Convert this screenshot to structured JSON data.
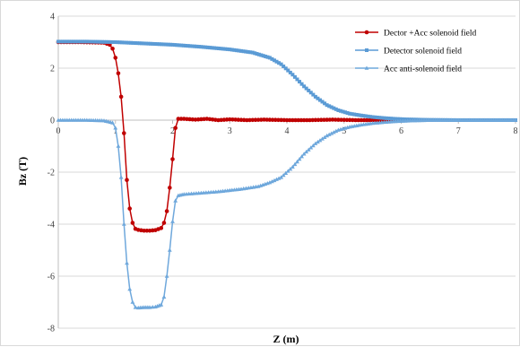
{
  "chart_data": {
    "type": "line",
    "xlabel": "Z (m)",
    "ylabel": "Bz (T)",
    "xlim": [
      0,
      8
    ],
    "ylim": [
      -8,
      4
    ],
    "x_ticks": [
      "0",
      "1",
      "2",
      "3",
      "4",
      "5",
      "6",
      "7",
      "8"
    ],
    "y_ticks": [
      "4",
      "2",
      "0",
      "-2",
      "-4",
      "-6",
      "-8"
    ],
    "grid": "horizontal",
    "legend_position": "top-right",
    "series": [
      {
        "name": "Dector +Acc solenoid field",
        "color": "#c00000",
        "marker": "circle",
        "points": [
          [
            0,
            3.0
          ],
          [
            0.2,
            3.0
          ],
          [
            0.4,
            3.0
          ],
          [
            0.6,
            2.99
          ],
          [
            0.8,
            2.98
          ],
          [
            0.9,
            2.9
          ],
          [
            0.95,
            2.75
          ],
          [
            1.0,
            2.4
          ],
          [
            1.05,
            1.8
          ],
          [
            1.1,
            0.9
          ],
          [
            1.15,
            -0.5
          ],
          [
            1.2,
            -2.3
          ],
          [
            1.25,
            -3.4
          ],
          [
            1.3,
            -3.95
          ],
          [
            1.35,
            -4.18
          ],
          [
            1.4,
            -4.22
          ],
          [
            1.5,
            -4.25
          ],
          [
            1.6,
            -4.25
          ],
          [
            1.7,
            -4.23
          ],
          [
            1.8,
            -4.15
          ],
          [
            1.85,
            -3.95
          ],
          [
            1.9,
            -3.5
          ],
          [
            1.95,
            -2.6
          ],
          [
            2.0,
            -1.5
          ],
          [
            2.05,
            -0.3
          ],
          [
            2.1,
            0.05
          ],
          [
            2.2,
            0.05
          ],
          [
            2.4,
            0.02
          ],
          [
            2.6,
            0.05
          ],
          [
            2.8,
            0.0
          ],
          [
            3.0,
            0.03
          ],
          [
            3.3,
            0.0
          ],
          [
            3.6,
            0.02
          ],
          [
            4.0,
            0.0
          ],
          [
            4.4,
            0.0
          ],
          [
            4.8,
            0.02
          ],
          [
            5.2,
            0.0
          ],
          [
            5.6,
            0.0
          ],
          [
            6.0,
            0.0
          ]
        ]
      },
      {
        "name": "Detector solenoid field",
        "color": "#5b9bd5",
        "marker": "square",
        "points": [
          [
            0,
            3.02
          ],
          [
            0.5,
            3.02
          ],
          [
            1.0,
            3.0
          ],
          [
            1.5,
            2.95
          ],
          [
            2.0,
            2.9
          ],
          [
            2.5,
            2.82
          ],
          [
            3.0,
            2.72
          ],
          [
            3.4,
            2.6
          ],
          [
            3.7,
            2.4
          ],
          [
            3.9,
            2.15
          ],
          [
            4.1,
            1.75
          ],
          [
            4.3,
            1.3
          ],
          [
            4.5,
            0.9
          ],
          [
            4.7,
            0.58
          ],
          [
            4.9,
            0.38
          ],
          [
            5.1,
            0.25
          ],
          [
            5.3,
            0.18
          ],
          [
            5.5,
            0.12
          ],
          [
            5.7,
            0.08
          ],
          [
            5.9,
            0.05
          ],
          [
            6.1,
            0.03
          ],
          [
            6.5,
            0.01
          ],
          [
            7.0,
            0.0
          ],
          [
            7.5,
            0.0
          ],
          [
            8.0,
            0.0
          ]
        ]
      },
      {
        "name": "Acc anti-solenoid field",
        "color": "#6fa8dc",
        "marker": "triangle",
        "points": [
          [
            0,
            0.0
          ],
          [
            0.5,
            0.0
          ],
          [
            0.8,
            -0.02
          ],
          [
            0.95,
            -0.1
          ],
          [
            1.0,
            -0.3
          ],
          [
            1.05,
            -1.0
          ],
          [
            1.1,
            -2.2
          ],
          [
            1.15,
            -4.0
          ],
          [
            1.2,
            -5.5
          ],
          [
            1.25,
            -6.5
          ],
          [
            1.3,
            -7.0
          ],
          [
            1.35,
            -7.2
          ],
          [
            1.4,
            -7.22
          ],
          [
            1.5,
            -7.2
          ],
          [
            1.6,
            -7.2
          ],
          [
            1.7,
            -7.18
          ],
          [
            1.8,
            -7.1
          ],
          [
            1.85,
            -6.8
          ],
          [
            1.9,
            -6.0
          ],
          [
            1.95,
            -5.0
          ],
          [
            2.0,
            -3.9
          ],
          [
            2.05,
            -3.1
          ],
          [
            2.1,
            -2.9
          ],
          [
            2.2,
            -2.85
          ],
          [
            2.5,
            -2.8
          ],
          [
            2.8,
            -2.75
          ],
          [
            3.0,
            -2.7
          ],
          [
            3.2,
            -2.65
          ],
          [
            3.5,
            -2.55
          ],
          [
            3.7,
            -2.4
          ],
          [
            3.9,
            -2.2
          ],
          [
            4.1,
            -1.8
          ],
          [
            4.3,
            -1.3
          ],
          [
            4.5,
            -0.9
          ],
          [
            4.7,
            -0.6
          ],
          [
            4.9,
            -0.38
          ],
          [
            5.1,
            -0.26
          ],
          [
            5.3,
            -0.18
          ],
          [
            5.5,
            -0.12
          ],
          [
            5.7,
            -0.08
          ],
          [
            5.9,
            -0.05
          ],
          [
            6.2,
            -0.02
          ],
          [
            6.6,
            0.0
          ],
          [
            7.0,
            0.0
          ],
          [
            7.5,
            0.0
          ],
          [
            8.0,
            0.0
          ]
        ]
      }
    ]
  }
}
